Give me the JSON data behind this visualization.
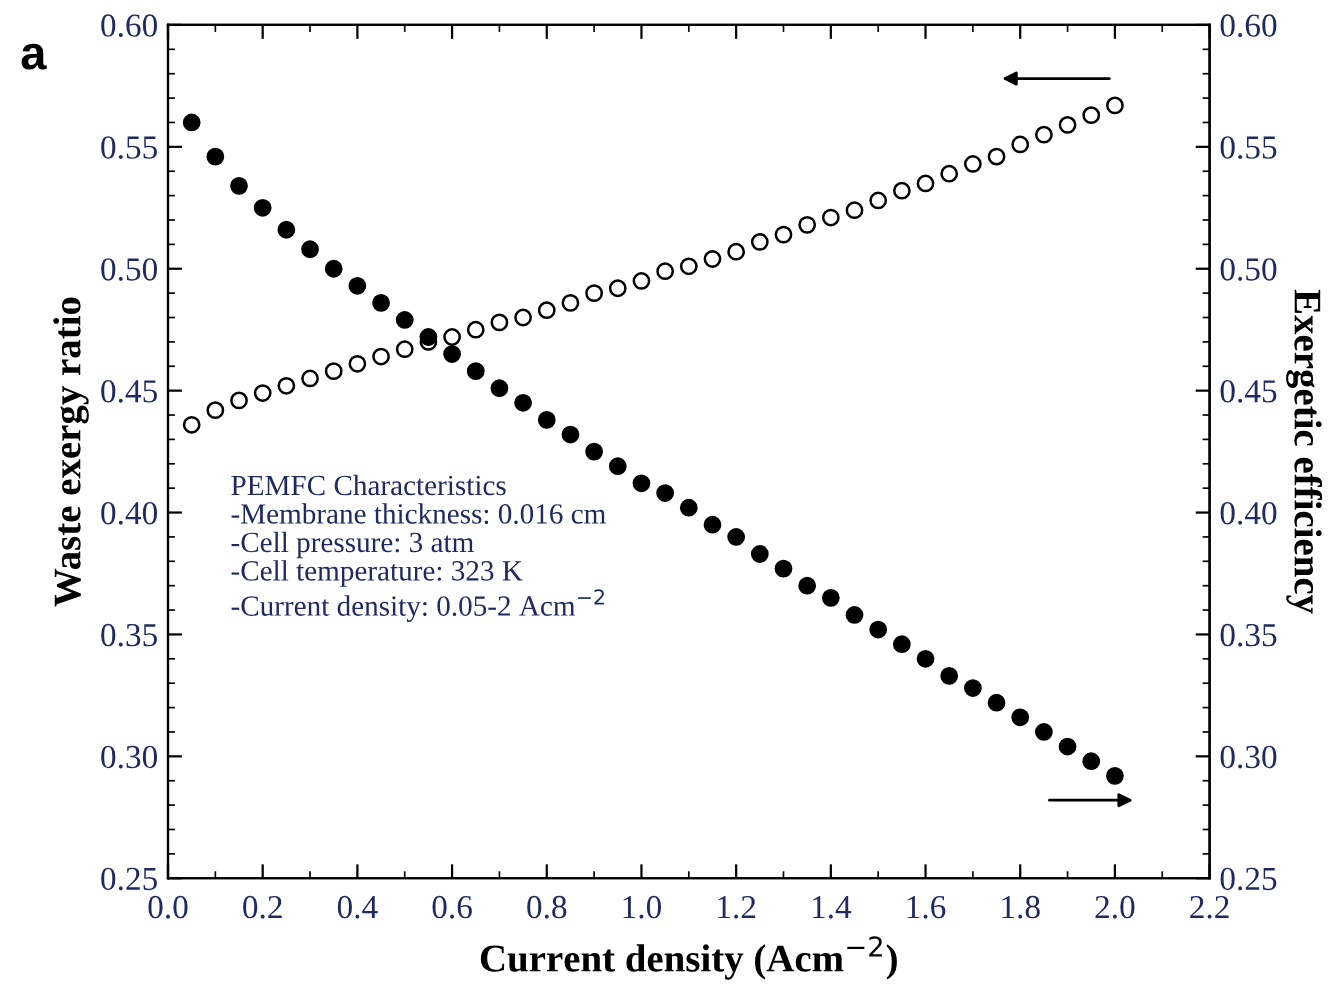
{
  "chart_data": {
    "type": "scatter",
    "xlabel": "Current density (Acm$^{−2}$)",
    "ylabel": "Waste exergy ratio",
    "y2label": "Exergetic efficiency",
    "x": [
      0.05,
      0.1,
      0.15,
      0.2,
      0.25,
      0.3,
      0.35,
      0.4,
      0.45,
      0.5,
      0.55,
      0.6,
      0.65,
      0.7,
      0.75,
      0.8,
      0.85,
      0.9,
      0.95,
      1.0,
      1.05,
      1.1,
      1.15,
      1.2,
      1.25,
      1.3,
      1.35,
      1.4,
      1.45,
      1.5,
      1.55,
      1.6,
      1.65,
      1.7,
      1.75,
      1.8,
      1.85,
      1.9,
      1.95,
      2.0
    ],
    "series": [
      {
        "color": "#000000",
        "axis": "y",
        "values": [
          0.436,
          0.442,
          0.446,
          0.449,
          0.452,
          0.455,
          0.458,
          0.461,
          0.464,
          0.467,
          0.47,
          0.472,
          0.475,
          0.478,
          0.48,
          0.483,
          0.486,
          0.49,
          0.492,
          0.495,
          0.499,
          0.501,
          0.504,
          0.507,
          0.511,
          0.514,
          0.518,
          0.521,
          0.524,
          0.528,
          0.532,
          0.535,
          0.539,
          0.543,
          0.546,
          0.551,
          0.555,
          0.559,
          0.563,
          0.567
        ]
      },
      {
        "color": "#000000",
        "axis": "y2",
        "values": [
          0.56,
          0.546,
          0.534,
          0.525,
          0.516,
          0.508,
          0.5,
          0.493,
          0.486,
          0.479,
          0.472,
          0.465,
          0.458,
          0.451,
          0.445,
          0.438,
          0.432,
          0.425,
          0.419,
          0.412,
          0.408,
          0.402,
          0.395,
          0.39,
          0.383,
          0.377,
          0.37,
          0.365,
          0.358,
          0.352,
          0.346,
          0.34,
          0.333,
          0.328,
          0.322,
          0.316,
          0.31,
          0.304,
          0.298,
          0.292
        ]
      }
    ],
    "xlim": [
      0.0,
      2.2
    ],
    "xticks": [
      {
        "value": 0.0,
        "label": "0.0"
      },
      {
        "value": 0.2,
        "label": "0.2"
      },
      {
        "value": 0.4,
        "label": "0.4"
      },
      {
        "value": 0.6,
        "label": "0.6"
      },
      {
        "value": 0.8,
        "label": "0.8"
      },
      {
        "value": 1.0,
        "label": "1.0"
      },
      {
        "value": 1.2,
        "label": "1.2"
      },
      {
        "value": 1.4,
        "label": "1.4"
      },
      {
        "value": 1.6,
        "label": "1.6"
      },
      {
        "value": 1.8,
        "label": "1.8"
      },
      {
        "value": 2.0,
        "label": "2.0"
      },
      {
        "value": 2.2,
        "label": "2.2"
      }
    ],
    "ylim": [
      0.25,
      0.6
    ],
    "yticks": [
      {
        "value": 0.25,
        "label": "0.25"
      },
      {
        "value": 0.3,
        "label": "0.30"
      },
      {
        "value": 0.35,
        "label": "0.35"
      },
      {
        "value": 0.4,
        "label": "0.40"
      },
      {
        "value": 0.45,
        "label": "0.45"
      },
      {
        "value": 0.5,
        "label": "0.50"
      },
      {
        "value": 0.55,
        "label": "0.55"
      },
      {
        "value": 0.6,
        "label": "0.60"
      }
    ],
    "y2lim": [
      0.25,
      0.6
    ],
    "y2ticks": [
      {
        "value": 0.25,
        "label": "0.25"
      },
      {
        "value": 0.3,
        "label": "0.30"
      },
      {
        "value": 0.35,
        "label": "0.35"
      },
      {
        "value": 0.4,
        "label": "0.40"
      },
      {
        "value": 0.45,
        "label": "0.45"
      },
      {
        "value": 0.5,
        "label": "0.50"
      },
      {
        "value": 0.55,
        "label": "0.55"
      },
      {
        "value": 0.6,
        "label": "0.60"
      }
    ],
    "marker": "circle",
    "grid": false,
    "legend": false,
    "annotations": [
      "a",
      "PEMFC Characteristics\n-Membrane thickness: 0.016 cm\n-Cell pressure: 3 atm\n-Cell temperature: 323 K\n-Current density: 0.05-2 Acm$^{−2}$"
    ]
  }
}
